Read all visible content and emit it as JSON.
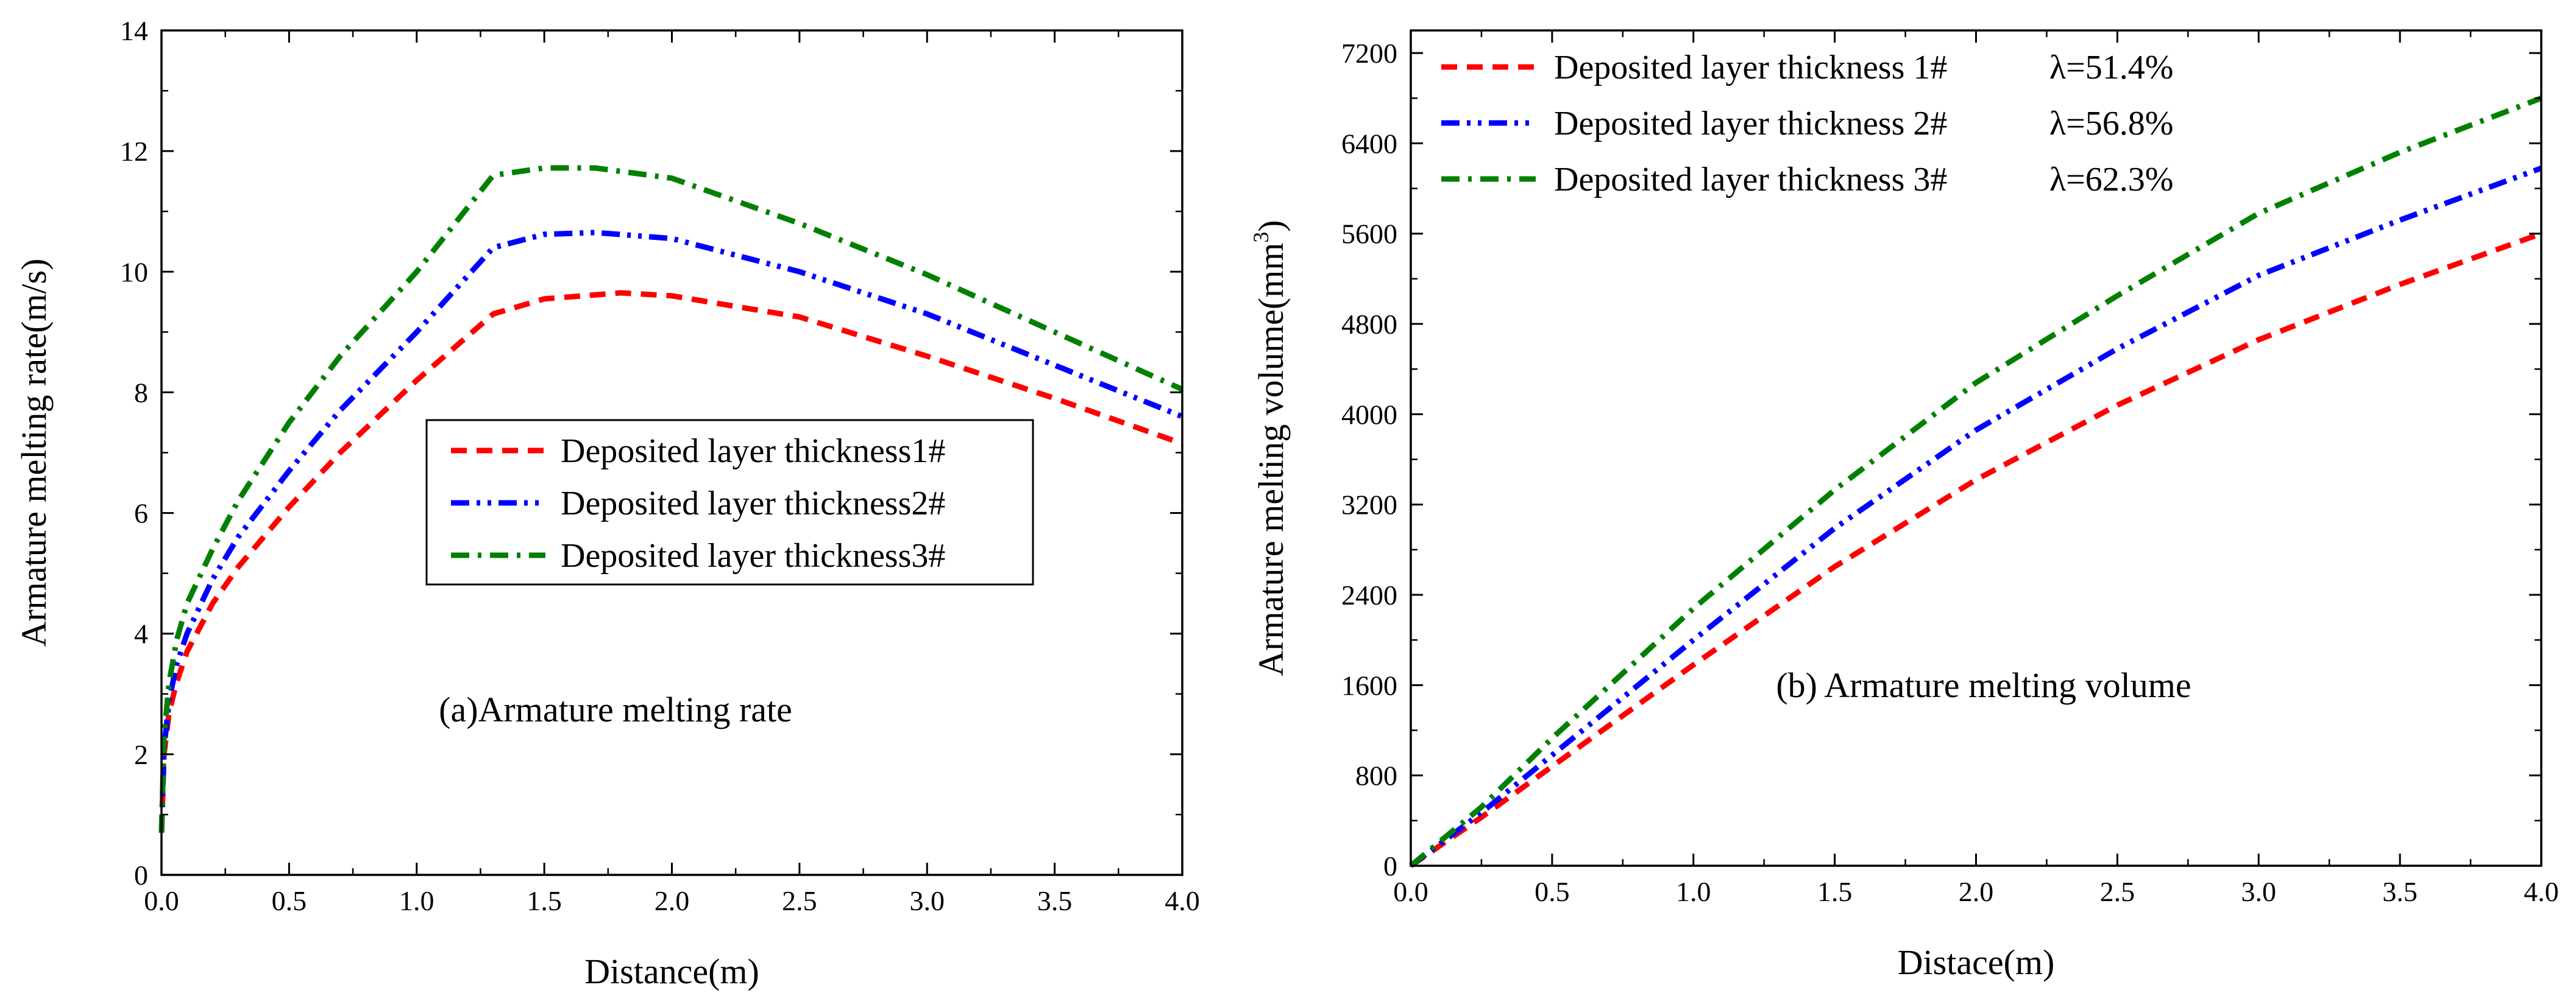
{
  "chart_data": [
    {
      "id": "a",
      "type": "line",
      "annotation": "(a)Armature melting rate",
      "xlabel": "Distance(m)",
      "ylabel": "Armature melting rate(m/s)",
      "xlim": [
        0,
        4
      ],
      "ylim": [
        0,
        14
      ],
      "x_ticks": [
        0,
        0.5,
        1,
        1.5,
        2,
        2.5,
        3,
        3.5,
        4
      ],
      "x_tick_labels": [
        "0.0",
        "0.5",
        "1.0",
        "1.5",
        "2.0",
        "2.5",
        "3.0",
        "3.5",
        "4.0"
      ],
      "y_ticks": [
        0,
        2,
        4,
        6,
        8,
        10,
        12,
        14
      ],
      "y_tick_labels": [
        "0",
        "2",
        "4",
        "6",
        "8",
        "10",
        "12",
        "14"
      ],
      "grid": false,
      "legend_position": "center-right",
      "series": [
        {
          "name": "Deposited layer thickness1#",
          "color": "#ff0000",
          "dash": "dash",
          "x": [
            0,
            0.01,
            0.03,
            0.06,
            0.1,
            0.2,
            0.3,
            0.5,
            0.7,
            1.0,
            1.3,
            1.5,
            1.8,
            2.0,
            2.5,
            3.0,
            3.5,
            4.0
          ],
          "y": [
            0.7,
            2.0,
            2.7,
            3.2,
            3.7,
            4.5,
            5.1,
            6.1,
            7.0,
            8.2,
            9.3,
            9.55,
            9.65,
            9.6,
            9.25,
            8.6,
            7.9,
            7.15
          ]
        },
        {
          "name": "Deposited layer thickness2#",
          "color": "#0000ff",
          "dash": "dashdotdot",
          "x": [
            0,
            0.01,
            0.03,
            0.06,
            0.1,
            0.2,
            0.3,
            0.5,
            0.7,
            1.0,
            1.3,
            1.5,
            1.7,
            2.0,
            2.5,
            3.0,
            3.5,
            4.0
          ],
          "y": [
            0.7,
            2.1,
            2.9,
            3.5,
            4.0,
            4.9,
            5.6,
            6.7,
            7.7,
            9.0,
            10.4,
            10.62,
            10.65,
            10.55,
            10.0,
            9.3,
            8.45,
            7.6
          ]
        },
        {
          "name": "Deposited layer thickness3#",
          "color": "#008000",
          "dash": "dashdot",
          "x": [
            0,
            0.01,
            0.03,
            0.06,
            0.1,
            0.2,
            0.3,
            0.5,
            0.7,
            1.0,
            1.3,
            1.5,
            1.7,
            2.0,
            2.5,
            3.0,
            3.5,
            4.0
          ],
          "y": [
            0.7,
            2.3,
            3.2,
            3.9,
            4.5,
            5.4,
            6.2,
            7.5,
            8.6,
            10.0,
            11.6,
            11.72,
            11.72,
            11.55,
            10.8,
            9.95,
            9.0,
            8.05
          ]
        }
      ]
    },
    {
      "id": "b",
      "type": "line",
      "annotation": "(b) Armature melting volume",
      "xlabel": "Distace(m)",
      "ylabel": "Armature melting volume(mm",
      "ylabel_superscript": "3",
      "ylabel_suffix": ")",
      "xlim": [
        0,
        4
      ],
      "ylim": [
        0,
        7400
      ],
      "x_ticks": [
        0,
        0.5,
        1,
        1.5,
        2,
        2.5,
        3,
        3.5,
        4
      ],
      "x_tick_labels": [
        "0.0",
        "0.5",
        "1.0",
        "1.5",
        "2.0",
        "2.5",
        "3.0",
        "3.5",
        "4.0"
      ],
      "y_ticks": [
        0,
        800,
        1600,
        2400,
        3200,
        4000,
        4800,
        5600,
        6400,
        7200
      ],
      "y_tick_labels": [
        "0",
        "800",
        "1600",
        "2400",
        "3200",
        "4000",
        "4800",
        "5600",
        "6400",
        "7200"
      ],
      "grid": false,
      "legend_position": "top-left",
      "series": [
        {
          "name": "Deposited layer thickness 1#",
          "lambda": "λ=51.4%",
          "color": "#ff0000",
          "dash": "dash",
          "x": [
            0,
            0.25,
            0.5,
            1.0,
            1.5,
            2.0,
            2.5,
            3.0,
            3.5,
            4.0
          ],
          "y": [
            0,
            430,
            880,
            1780,
            2650,
            3420,
            4080,
            4660,
            5150,
            5600
          ]
        },
        {
          "name": "Deposited layer thickness 2#",
          "lambda": "λ=56.8%",
          "color": "#0000ff",
          "dash": "dashdotdot",
          "x": [
            0,
            0.25,
            0.5,
            1.0,
            1.5,
            2.0,
            2.5,
            3.0,
            3.5,
            4.0
          ],
          "y": [
            0,
            470,
            980,
            2000,
            2990,
            3860,
            4580,
            5230,
            5720,
            6180
          ]
        },
        {
          "name": "Deposited layer thickness 3#",
          "lambda": "λ=62.3%",
          "color": "#008000",
          "dash": "dashdot",
          "x": [
            0,
            0.25,
            0.5,
            1.0,
            1.5,
            2.0,
            2.5,
            3.0,
            3.5,
            4.0
          ],
          "y": [
            0,
            520,
            1130,
            2280,
            3330,
            4280,
            5050,
            5780,
            6320,
            6800
          ]
        }
      ]
    }
  ]
}
